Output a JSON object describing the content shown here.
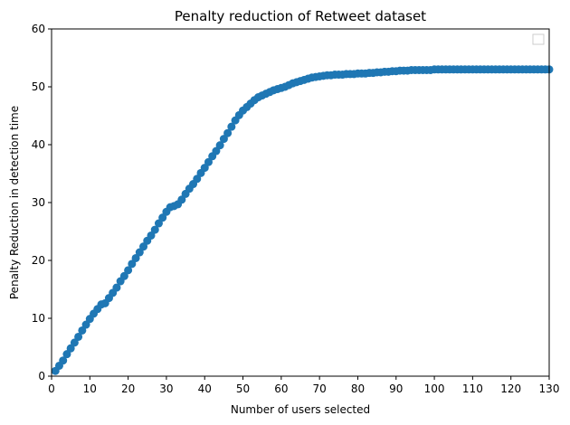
{
  "chart_data": {
    "type": "scatter",
    "title": "Penalty reduction of Retweet dataset",
    "xlabel": "Number of users selected",
    "ylabel": "Penalty Reduction in detection time",
    "xlim": [
      0,
      130
    ],
    "ylim": [
      0,
      60
    ],
    "xticks": [
      0,
      10,
      20,
      30,
      40,
      50,
      60,
      70,
      80,
      90,
      100,
      110,
      120,
      130
    ],
    "yticks": [
      0,
      10,
      20,
      30,
      40,
      50,
      60
    ],
    "grid": false,
    "legend": {
      "placement": "top-right",
      "entries": []
    },
    "series": [
      {
        "color": "#1f77b4",
        "marker": "circle",
        "x": [
          1,
          2,
          3,
          4,
          5,
          6,
          7,
          8,
          9,
          10,
          11,
          12,
          13,
          14,
          15,
          16,
          17,
          18,
          19,
          20,
          21,
          22,
          23,
          24,
          25,
          26,
          27,
          28,
          29,
          30,
          31,
          32,
          33,
          34,
          35,
          36,
          37,
          38,
          39,
          40,
          41,
          42,
          43,
          44,
          45,
          46,
          47,
          48,
          49,
          50,
          51,
          52,
          53,
          54,
          55,
          56,
          57,
          58,
          59,
          60,
          61,
          62,
          63,
          64,
          65,
          66,
          67,
          68,
          69,
          70,
          71,
          72,
          73,
          74,
          75,
          76,
          77,
          78,
          79,
          80,
          81,
          82,
          83,
          84,
          85,
          86,
          87,
          88,
          89,
          90,
          91,
          92,
          93,
          94,
          95,
          96,
          97,
          98,
          99,
          100,
          101,
          102,
          103,
          104,
          105,
          106,
          107,
          108,
          109,
          110,
          111,
          112,
          113,
          114,
          115,
          116,
          117,
          118,
          119,
          120,
          121,
          122,
          123,
          124,
          125,
          126,
          127,
          128,
          129,
          130
        ],
        "y": [
          0.9,
          1.8,
          2.7,
          3.8,
          4.8,
          5.8,
          6.8,
          7.9,
          8.9,
          9.9,
          10.8,
          11.6,
          12.4,
          12.6,
          13.5,
          14.4,
          15.3,
          16.4,
          17.3,
          18.3,
          19.4,
          20.4,
          21.4,
          22.4,
          23.4,
          24.3,
          25.3,
          26.4,
          27.4,
          28.4,
          29.2,
          29.4,
          29.7,
          30.5,
          31.5,
          32.4,
          33.2,
          34.1,
          35.1,
          36.0,
          37.0,
          38.0,
          38.9,
          39.9,
          41.0,
          42.0,
          43.1,
          44.2,
          45.1,
          45.9,
          46.5,
          47.1,
          47.7,
          48.2,
          48.5,
          48.8,
          49.1,
          49.4,
          49.6,
          49.8,
          50.0,
          50.3,
          50.6,
          50.8,
          51.0,
          51.2,
          51.4,
          51.6,
          51.7,
          51.8,
          51.9,
          52.0,
          52.0,
          52.1,
          52.1,
          52.1,
          52.2,
          52.2,
          52.2,
          52.3,
          52.3,
          52.3,
          52.4,
          52.4,
          52.5,
          52.5,
          52.6,
          52.6,
          52.7,
          52.7,
          52.8,
          52.8,
          52.8,
          52.9,
          52.9,
          52.9,
          52.9,
          52.9,
          52.9,
          53.0,
          53.0,
          53.0,
          53.0,
          53.0,
          53.0,
          53.0,
          53.0,
          53.0,
          53.0,
          53.0,
          53.0,
          53.0,
          53.0,
          53.0,
          53.0,
          53.0,
          53.0,
          53.0,
          53.0,
          53.0,
          53.0,
          53.0,
          53.0,
          53.0,
          53.0,
          53.0,
          53.0,
          53.0,
          53.0,
          53.0
        ]
      }
    ]
  }
}
